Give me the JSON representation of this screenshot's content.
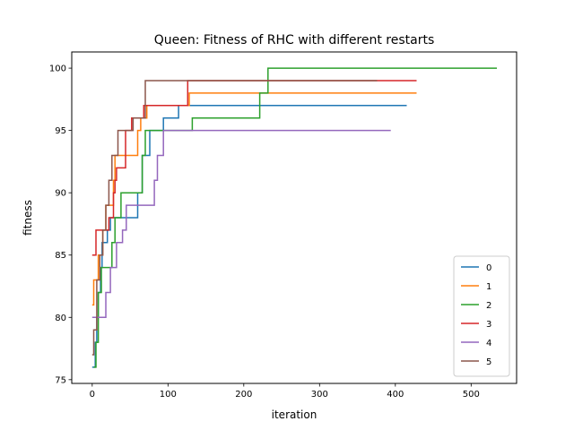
{
  "chart_data": {
    "type": "line",
    "title": "Queen: Fitness of RHC with different restarts",
    "xlabel": "iteration",
    "ylabel": "fitness",
    "xlim": [
      -27,
      560
    ],
    "ylim": [
      74.7,
      101.3
    ],
    "xticks": [
      0,
      100,
      200,
      300,
      400,
      500
    ],
    "yticks": [
      75,
      80,
      85,
      90,
      95,
      100
    ],
    "grid": false,
    "legend_position": "lower-right",
    "series": [
      {
        "name": "0",
        "color": "#1f77b4",
        "points": [
          [
            0,
            76
          ],
          [
            4,
            76
          ],
          [
            4,
            78
          ],
          [
            6,
            78
          ],
          [
            6,
            80
          ],
          [
            8,
            80
          ],
          [
            8,
            82
          ],
          [
            11,
            82
          ],
          [
            11,
            84
          ],
          [
            13,
            84
          ],
          [
            13,
            86
          ],
          [
            20,
            86
          ],
          [
            20,
            87
          ],
          [
            24,
            87
          ],
          [
            24,
            88
          ],
          [
            60,
            88
          ],
          [
            60,
            90
          ],
          [
            66,
            90
          ],
          [
            66,
            93
          ],
          [
            76,
            93
          ],
          [
            76,
            95
          ],
          [
            94,
            95
          ],
          [
            94,
            96
          ],
          [
            114,
            96
          ],
          [
            114,
            97
          ],
          [
            415,
            97
          ]
        ]
      },
      {
        "name": "1",
        "color": "#ff7f0e",
        "points": [
          [
            0,
            81
          ],
          [
            2,
            81
          ],
          [
            2,
            83
          ],
          [
            8,
            83
          ],
          [
            8,
            85
          ],
          [
            14,
            85
          ],
          [
            14,
            87
          ],
          [
            18,
            87
          ],
          [
            18,
            89
          ],
          [
            28,
            89
          ],
          [
            28,
            91
          ],
          [
            30,
            91
          ],
          [
            30,
            93
          ],
          [
            60,
            93
          ],
          [
            60,
            95
          ],
          [
            64,
            95
          ],
          [
            64,
            96
          ],
          [
            72,
            96
          ],
          [
            72,
            97
          ],
          [
            128,
            97
          ],
          [
            128,
            98
          ],
          [
            428,
            98
          ]
        ]
      },
      {
        "name": "2",
        "color": "#2ca02c",
        "points": [
          [
            2,
            76
          ],
          [
            5,
            76
          ],
          [
            5,
            78
          ],
          [
            8,
            78
          ],
          [
            8,
            82
          ],
          [
            12,
            82
          ],
          [
            12,
            84
          ],
          [
            26,
            84
          ],
          [
            26,
            86
          ],
          [
            30,
            86
          ],
          [
            30,
            88
          ],
          [
            38,
            88
          ],
          [
            38,
            90
          ],
          [
            66,
            90
          ],
          [
            66,
            93
          ],
          [
            70,
            93
          ],
          [
            70,
            95
          ],
          [
            132,
            95
          ],
          [
            132,
            96
          ],
          [
            221,
            96
          ],
          [
            221,
            98
          ],
          [
            232,
            98
          ],
          [
            232,
            100
          ],
          [
            534,
            100
          ]
        ]
      },
      {
        "name": "3",
        "color": "#d62728",
        "points": [
          [
            0,
            85
          ],
          [
            5,
            85
          ],
          [
            5,
            87
          ],
          [
            22,
            87
          ],
          [
            22,
            88
          ],
          [
            28,
            88
          ],
          [
            28,
            90
          ],
          [
            30,
            90
          ],
          [
            30,
            91
          ],
          [
            32,
            91
          ],
          [
            32,
            92
          ],
          [
            44,
            92
          ],
          [
            44,
            95
          ],
          [
            52,
            95
          ],
          [
            52,
            96
          ],
          [
            68,
            96
          ],
          [
            68,
            97
          ],
          [
            126,
            97
          ],
          [
            126,
            99
          ],
          [
            428,
            99
          ]
        ]
      },
      {
        "name": "4",
        "color": "#9467bd",
        "points": [
          [
            0,
            80
          ],
          [
            18,
            80
          ],
          [
            18,
            82
          ],
          [
            24,
            82
          ],
          [
            24,
            84
          ],
          [
            32,
            84
          ],
          [
            32,
            86
          ],
          [
            40,
            86
          ],
          [
            40,
            87
          ],
          [
            45,
            87
          ],
          [
            45,
            89
          ],
          [
            82,
            89
          ],
          [
            82,
            91
          ],
          [
            86,
            91
          ],
          [
            86,
            93
          ],
          [
            94,
            93
          ],
          [
            94,
            95
          ],
          [
            394,
            95
          ]
        ]
      },
      {
        "name": "5",
        "color": "#8c564b",
        "points": [
          [
            0,
            77
          ],
          [
            2,
            77
          ],
          [
            2,
            79
          ],
          [
            6,
            79
          ],
          [
            6,
            83
          ],
          [
            10,
            83
          ],
          [
            10,
            85
          ],
          [
            14,
            85
          ],
          [
            14,
            87
          ],
          [
            18,
            87
          ],
          [
            18,
            89
          ],
          [
            22,
            89
          ],
          [
            22,
            91
          ],
          [
            26,
            91
          ],
          [
            26,
            93
          ],
          [
            34,
            93
          ],
          [
            34,
            95
          ],
          [
            54,
            95
          ],
          [
            54,
            96
          ],
          [
            70,
            96
          ],
          [
            70,
            99
          ],
          [
            376,
            99
          ]
        ]
      }
    ]
  }
}
